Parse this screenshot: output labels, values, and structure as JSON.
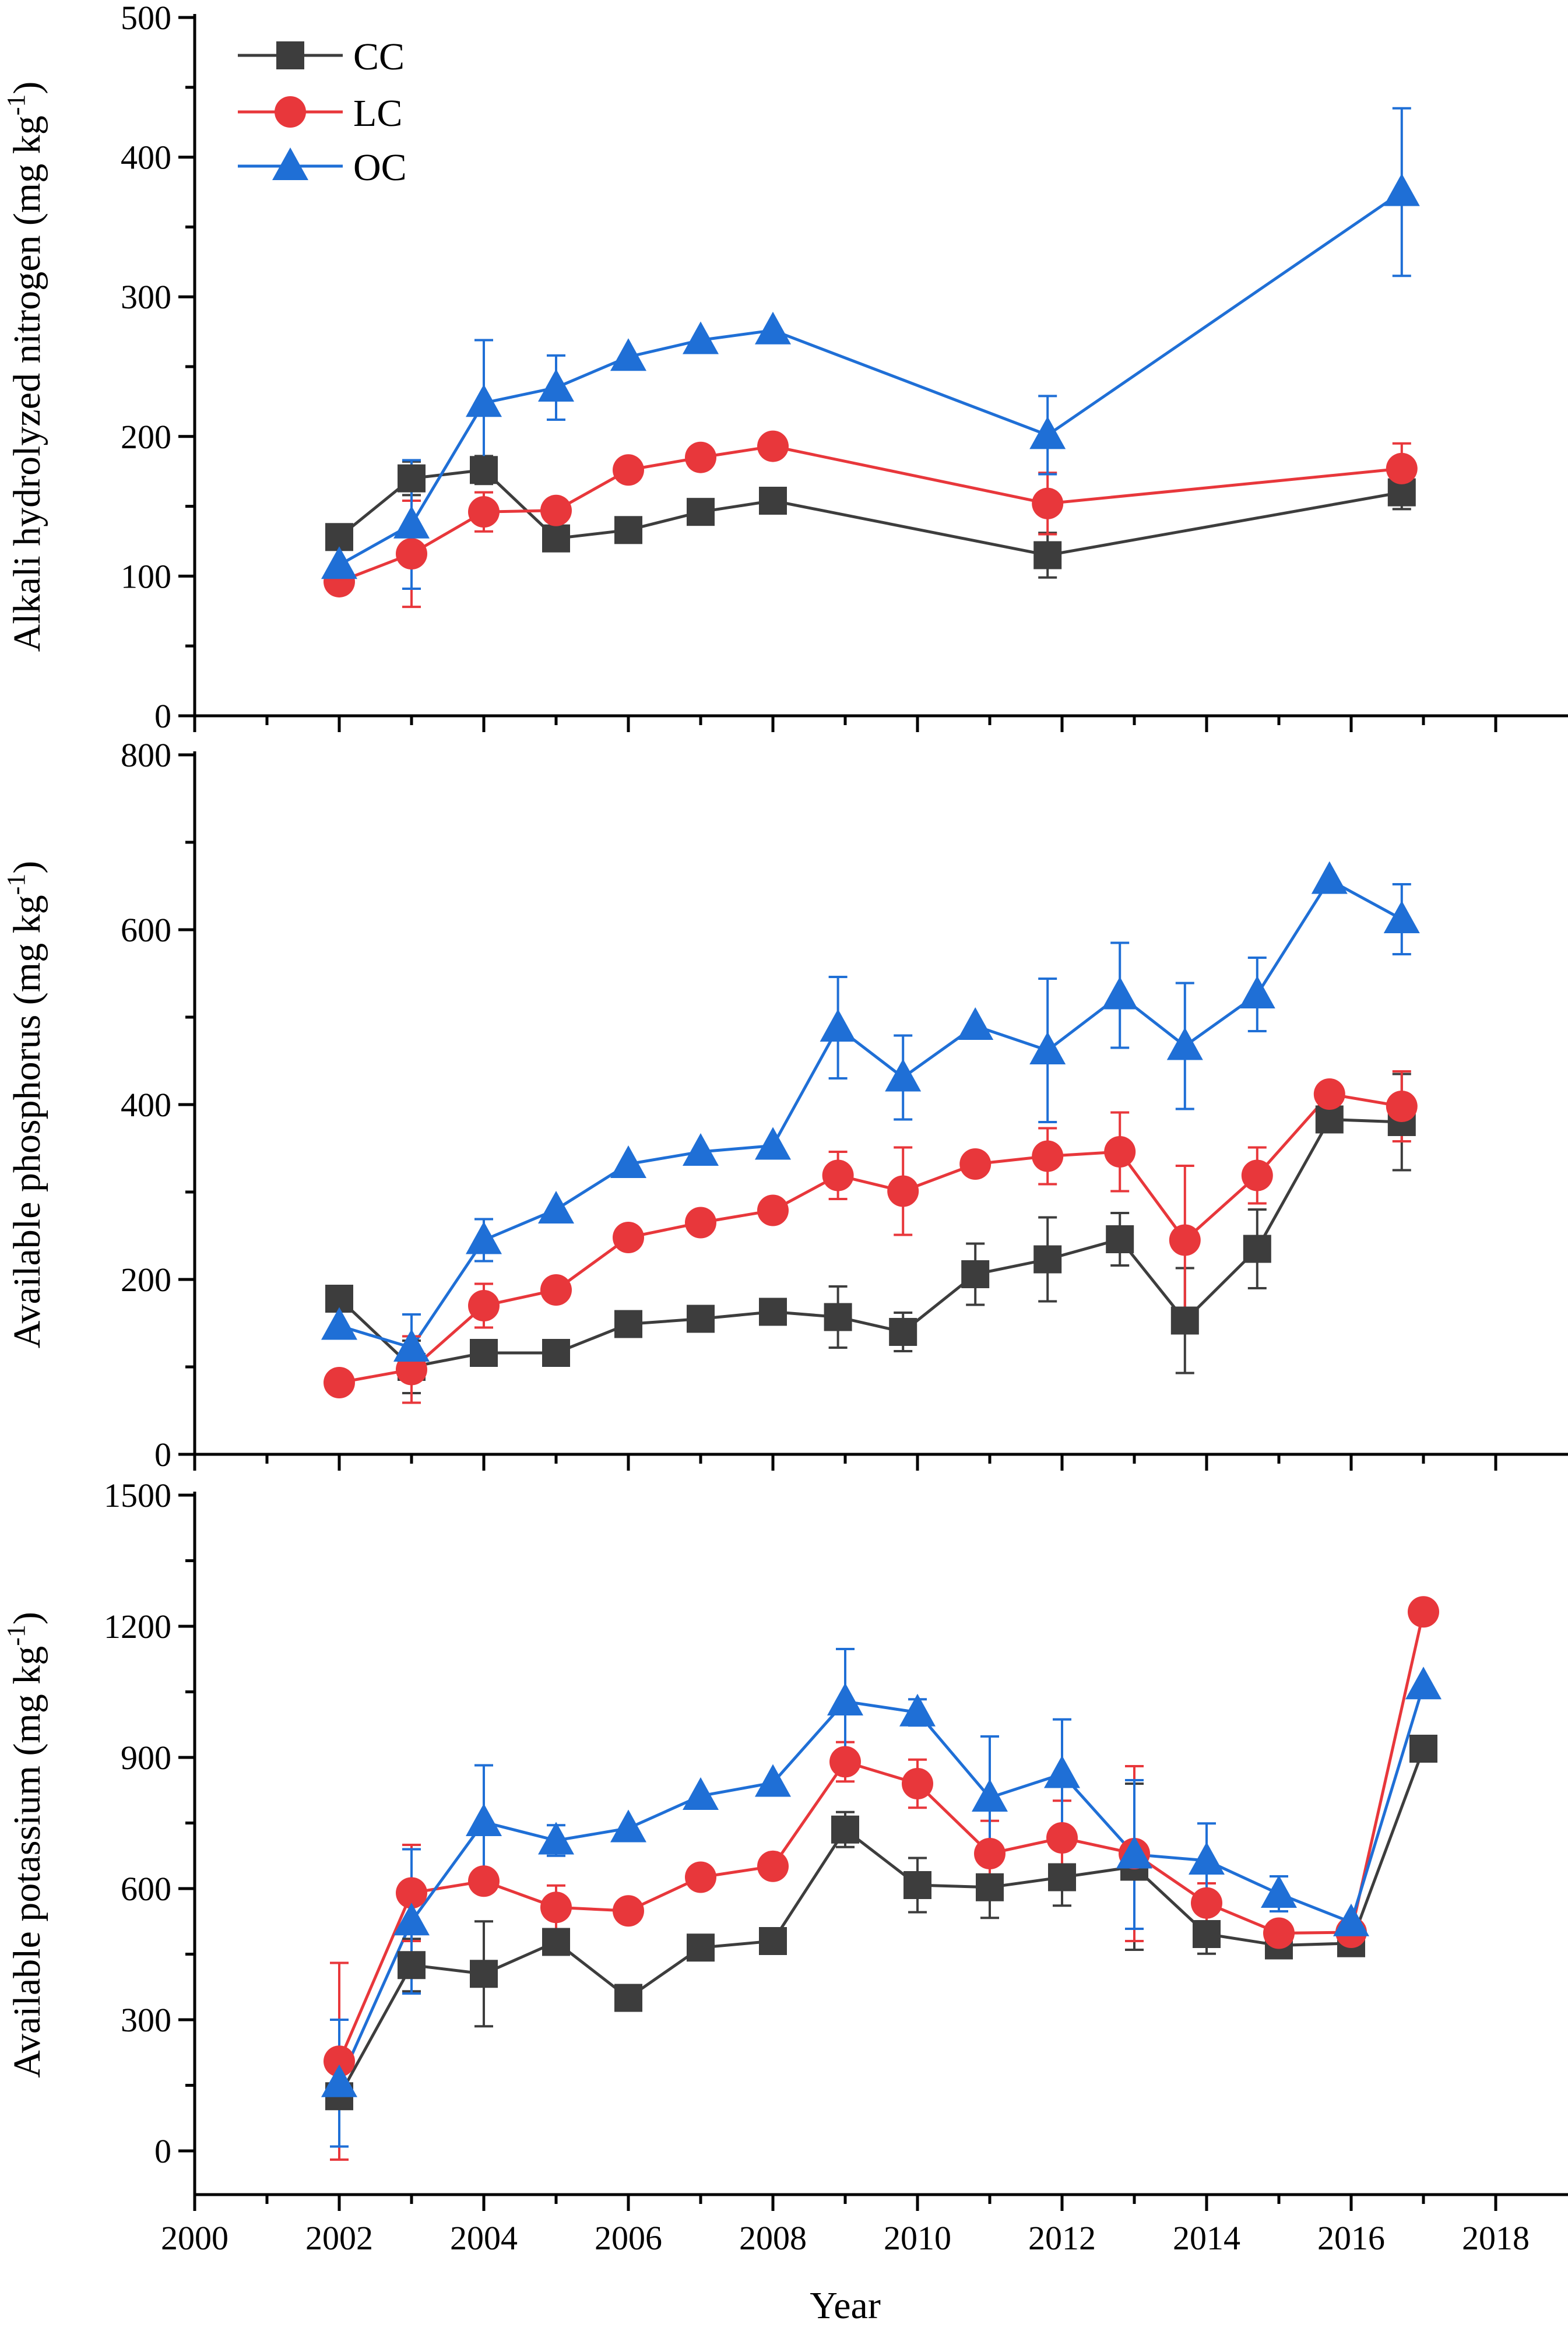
{
  "chart_data": [
    {
      "type": "line",
      "id": "nitrogen",
      "ylabel": "Alkali hydrolyzed nitrogen (mg kg",
      "ylabel_sup": "-1",
      "ylabel_close": ")",
      "ylim": [
        0,
        500
      ],
      "yticks": [
        0,
        100,
        200,
        300,
        400,
        500
      ],
      "ytick_labels": [
        "0",
        "100",
        "200",
        "300",
        "400",
        "500"
      ],
      "legend": {
        "position": "top-left",
        "entries": [
          "CC",
          "LC",
          "OC"
        ]
      },
      "series": [
        {
          "name": "CC",
          "color": "#3d3d3d",
          "marker": "square",
          "x": [
            2002,
            2003,
            2004,
            2005,
            2006,
            2007,
            2008,
            2011.8,
            2016.7
          ],
          "y": [
            128,
            170,
            176,
            127,
            133,
            146,
            154,
            115,
            160
          ],
          "err": [
            0,
            12,
            10,
            0,
            0,
            0,
            0,
            16,
            12
          ]
        },
        {
          "name": "LC",
          "color": "#e8373b",
          "marker": "circle",
          "x": [
            2002,
            2003,
            2004,
            2005,
            2006,
            2007,
            2008,
            2011.8,
            2016.7
          ],
          "y": [
            96,
            116,
            146,
            147,
            176,
            185,
            193,
            152,
            177
          ],
          "err": [
            0,
            38,
            14,
            0,
            0,
            0,
            0,
            22,
            18
          ]
        },
        {
          "name": "OC",
          "color": "#1f6fd6",
          "marker": "triangle",
          "x": [
            2002,
            2003,
            2004,
            2005,
            2006,
            2007,
            2008,
            2011.8,
            2016.7
          ],
          "y": [
            108,
            137,
            224,
            235,
            257,
            269,
            276,
            201,
            375
          ],
          "err": [
            0,
            46,
            45,
            23,
            0,
            0,
            0,
            28,
            60
          ]
        }
      ]
    },
    {
      "type": "line",
      "id": "phosphorus",
      "ylabel": "Available phosphorus (mg kg",
      "ylabel_sup": "-1",
      "ylabel_close": ")",
      "ylim": [
        0,
        800
      ],
      "yticks": [
        0,
        200,
        400,
        600,
        800
      ],
      "ytick_labels": [
        "0",
        "200",
        "400",
        "600",
        "800"
      ],
      "series": [
        {
          "name": "CC",
          "color": "#3d3d3d",
          "marker": "square",
          "x": [
            2002,
            2003,
            2004,
            2005,
            2006,
            2007,
            2008,
            2008.9,
            2009.8,
            2010.8,
            2011.8,
            2012.8,
            2013.7,
            2014.7,
            2015.7,
            2016.7
          ],
          "y": [
            178,
            100,
            116,
            116,
            149,
            155,
            163,
            157,
            140,
            206,
            223,
            246,
            153,
            235,
            383,
            380
          ],
          "err": [
            10,
            30,
            0,
            0,
            0,
            0,
            0,
            35,
            22,
            35,
            48,
            30,
            60,
            45,
            0,
            55
          ]
        },
        {
          "name": "LC",
          "color": "#e8373b",
          "marker": "circle",
          "x": [
            2002,
            2003,
            2004,
            2005,
            2006,
            2007,
            2008,
            2008.9,
            2009.8,
            2010.8,
            2011.8,
            2012.8,
            2013.7,
            2014.7,
            2015.7,
            2016.7
          ],
          "y": [
            82,
            97,
            170,
            188,
            248,
            265,
            279,
            319,
            301,
            332,
            341,
            346,
            245,
            319,
            412,
            398
          ],
          "err": [
            0,
            38,
            25,
            0,
            0,
            0,
            0,
            27,
            50,
            0,
            32,
            45,
            85,
            32,
            0,
            40
          ]
        },
        {
          "name": "OC",
          "color": "#1f6fd6",
          "marker": "triangle",
          "x": [
            2002,
            2003,
            2004,
            2005,
            2006,
            2007,
            2008,
            2008.9,
            2009.8,
            2010.8,
            2011.8,
            2012.8,
            2013.7,
            2014.7,
            2015.7,
            2016.7
          ],
          "y": [
            147,
            122,
            245,
            280,
            332,
            346,
            353,
            488,
            431,
            490,
            462,
            525,
            467,
            526,
            657,
            612
          ],
          "err": [
            0,
            38,
            24,
            0,
            0,
            0,
            0,
            58,
            48,
            0,
            82,
            60,
            72,
            42,
            0,
            40
          ]
        }
      ]
    },
    {
      "type": "line",
      "id": "potassium",
      "ylabel": "Available potassium (mg kg",
      "ylabel_sup": "-1",
      "ylabel_close": ")",
      "ylim": [
        -100,
        1500
      ],
      "yticks": [
        0,
        300,
        600,
        900,
        1200,
        1500
      ],
      "ytick_labels": [
        "0",
        "300",
        "600",
        "900",
        "1200",
        "1500"
      ],
      "xlabel": "Year",
      "xlim": [
        2000,
        2019
      ],
      "xticks": [
        2000,
        2002,
        2004,
        2006,
        2008,
        2010,
        2012,
        2014,
        2016,
        2018
      ],
      "xtick_labels": [
        "2000",
        "2002",
        "2004",
        "2006",
        "2008",
        "2010",
        "2012",
        "2014",
        "2016",
        "2018"
      ],
      "series": [
        {
          "name": "CC",
          "color": "#3d3d3d",
          "marker": "square",
          "x": [
            2002,
            2003,
            2004,
            2005,
            2006,
            2007,
            2008,
            2009,
            2010,
            2011,
            2012,
            2013,
            2014,
            2015,
            2016,
            2017
          ],
          "y": [
            125,
            425,
            405,
            478,
            350,
            465,
            480,
            735,
            608,
            603,
            626,
            650,
            496,
            470,
            475,
            920
          ],
          "err": [
            0,
            60,
            120,
            0,
            0,
            0,
            0,
            40,
            62,
            70,
            65,
            190,
            45,
            0,
            0,
            0
          ]
        },
        {
          "name": "LC",
          "color": "#e8373b",
          "marker": "circle",
          "x": [
            2002,
            2003,
            2004,
            2005,
            2006,
            2007,
            2008,
            2009,
            2010,
            2011,
            2012,
            2013,
            2014,
            2015,
            2016,
            2017
          ],
          "y": [
            205,
            590,
            617,
            557,
            549,
            626,
            651,
            890,
            840,
            680,
            716,
            680,
            567,
            498,
            500,
            1233
          ],
          "err": [
            225,
            110,
            0,
            50,
            0,
            0,
            0,
            45,
            55,
            75,
            85,
            200,
            45,
            0,
            0,
            0
          ]
        },
        {
          "name": "OC",
          "color": "#1f6fd6",
          "marker": "triangle",
          "x": [
            2002,
            2003,
            2004,
            2005,
            2006,
            2007,
            2008,
            2009,
            2010,
            2011,
            2012,
            2013,
            2014,
            2015,
            2016,
            2017
          ],
          "y": [
            155,
            525,
            752,
            710,
            738,
            812,
            842,
            1028,
            1003,
            808,
            862,
            678,
            664,
            588,
            523,
            1065
          ],
          "err": [
            145,
            165,
            130,
            35,
            0,
            0,
            0,
            120,
            30,
            140,
            125,
            170,
            85,
            40,
            0,
            0
          ]
        }
      ]
    }
  ]
}
